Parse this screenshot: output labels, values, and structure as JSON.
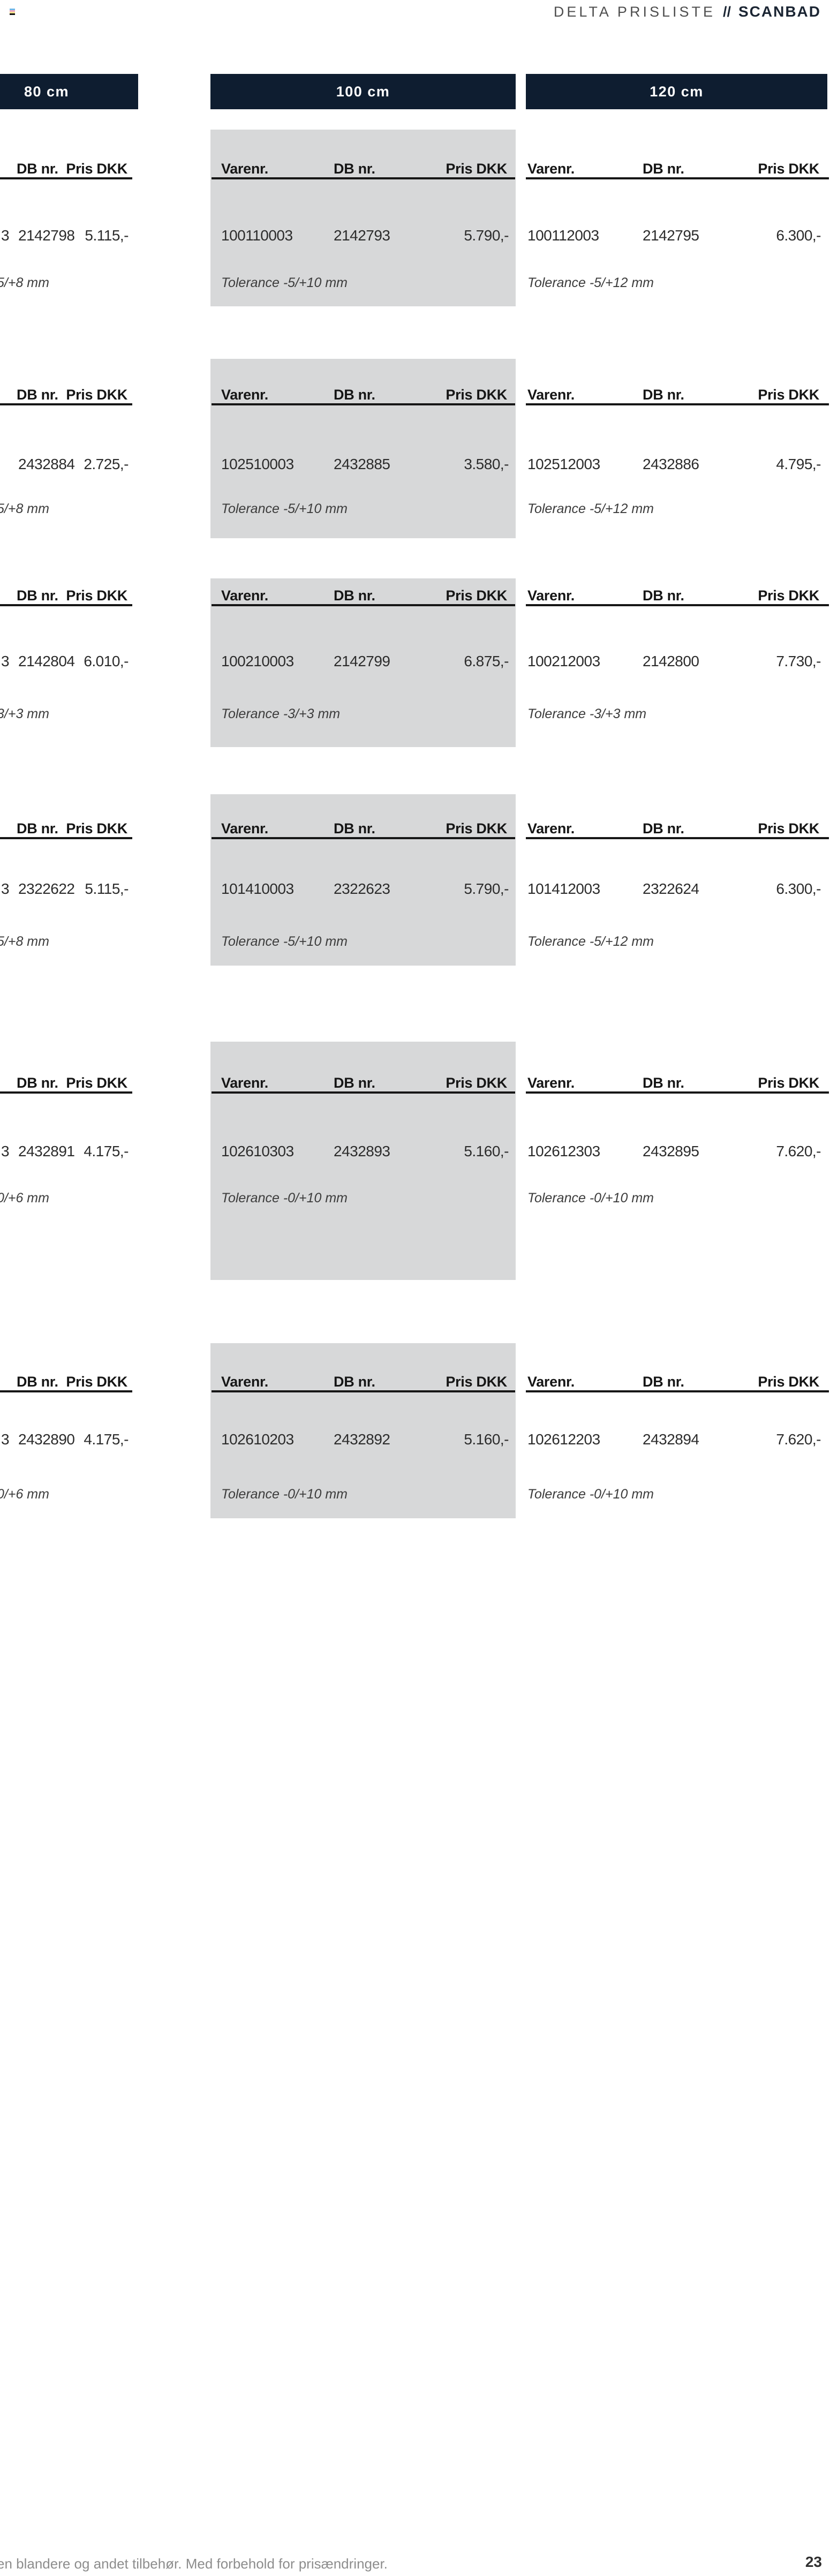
{
  "header": {
    "title": "DELTA PRISLISTE",
    "separator": "//",
    "brand": "SCANBAD"
  },
  "columns": [
    {
      "label": "80 cm"
    },
    {
      "label": "100 cm"
    },
    {
      "label": "120 cm"
    }
  ],
  "table_headers": {
    "varenr": "Varenr.",
    "db": "DB nr.",
    "pris": "Pris DKK"
  },
  "groups": [
    {
      "c80": {
        "varenr": "3",
        "db": "2142798",
        "pris": "5.115,-",
        "tolerance": "5/+8 mm"
      },
      "c100": {
        "varenr": "100110003",
        "db": "2142793",
        "pris": "5.790,-",
        "tolerance": "Tolerance -5/+10 mm"
      },
      "c120": {
        "varenr": "100112003",
        "db": "2142795",
        "pris": "6.300,-",
        "tolerance": "Tolerance -5/+12 mm"
      }
    },
    {
      "c80": {
        "varenr": "",
        "db": "2432884",
        "pris": "2.725,-",
        "tolerance": "5/+8 mm"
      },
      "c100": {
        "varenr": "102510003",
        "db": "2432885",
        "pris": "3.580,-",
        "tolerance": "Tolerance -5/+10 mm"
      },
      "c120": {
        "varenr": "102512003",
        "db": "2432886",
        "pris": "4.795,-",
        "tolerance": "Tolerance -5/+12 mm"
      }
    },
    {
      "c80": {
        "varenr": "3",
        "db": "2142804",
        "pris": "6.010,-",
        "tolerance": "3/+3 mm"
      },
      "c100": {
        "varenr": "100210003",
        "db": "2142799",
        "pris": "6.875,-",
        "tolerance": "Tolerance -3/+3 mm"
      },
      "c120": {
        "varenr": "100212003",
        "db": "2142800",
        "pris": "7.730,-",
        "tolerance": "Tolerance -3/+3 mm"
      }
    },
    {
      "c80": {
        "varenr": "3",
        "db": "2322622",
        "pris": "5.115,-",
        "tolerance": "5/+8 mm"
      },
      "c100": {
        "varenr": "101410003",
        "db": "2322623",
        "pris": "5.790,-",
        "tolerance": "Tolerance -5/+10 mm"
      },
      "c120": {
        "varenr": "101412003",
        "db": "2322624",
        "pris": "6.300,-",
        "tolerance": "Tolerance -5/+12 mm"
      }
    },
    {
      "c80": {
        "varenr": "3",
        "db": "2432891",
        "pris": "4.175,-",
        "tolerance": "0/+6 mm"
      },
      "c100": {
        "varenr": "102610303",
        "db": "2432893",
        "pris": "5.160,-",
        "tolerance": "Tolerance -0/+10 mm"
      },
      "c120": {
        "varenr": "102612303",
        "db": "2432895",
        "pris": "7.620,-",
        "tolerance": "Tolerance -0/+10 mm"
      }
    },
    {
      "c80": {
        "varenr": "3",
        "db": "2432890",
        "pris": "4.175,-",
        "tolerance": "0/+6 mm"
      },
      "c100": {
        "varenr": "102610203",
        "db": "2432892",
        "pris": "5.160,-",
        "tolerance": "Tolerance -0/+10 mm"
      },
      "c120": {
        "varenr": "102612203",
        "db": "2432894",
        "pris": "7.620,-",
        "tolerance": "Tolerance -0/+10 mm"
      }
    }
  ],
  "footer": {
    "note": "en blandere og andet tilbehør. Med forbehold for prisændringer.",
    "page_number": "23"
  },
  "theme": {
    "navy_bar": "#0e1d30",
    "grey_block": "#d7d8d9",
    "registration_colors": [
      "#6fb7e8",
      "#f0a6c0",
      "#f2df8e",
      "#141414"
    ]
  }
}
